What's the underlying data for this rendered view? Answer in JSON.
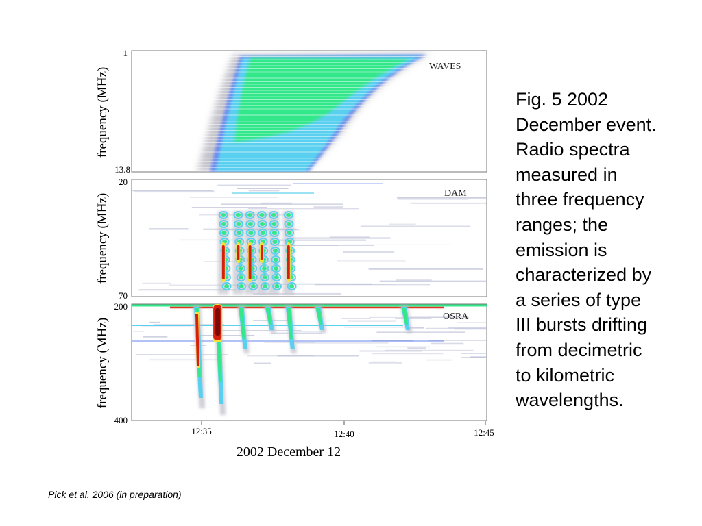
{
  "caption": {
    "lines": [
      "Fig. 5   2002",
      "December event.",
      "Radio spectra",
      "measured in",
      "three frequency",
      "ranges; the",
      "emission is",
      "characterized by",
      "a series of type",
      "III bursts drifting",
      "from decimetric",
      "to kilometric",
      "wavelengths."
    ]
  },
  "credit": "Pick et al. 2006 (in preparation)",
  "chart_data": {
    "type": "heatmap",
    "xlabel": "2002 December 12",
    "time_range": [
      "12:33",
      "12:45"
    ],
    "xticks": [
      "12:35",
      "12:40",
      "12:45"
    ],
    "colors": {
      "green": "#33e88a",
      "cyan": "#5ad0f0",
      "blue": "#6e8cf0",
      "gray": "#b9b9c6",
      "red": "#d4200c",
      "dark_red": "#7a0a04",
      "yellow": "#f2e23a"
    },
    "panels": [
      {
        "instrument": "WAVES",
        "ylabel": "frequency (MHz)",
        "ylim": [
          1,
          13.8
        ],
        "yticks": [
          "1",
          "13.8"
        ]
      },
      {
        "instrument": "DAM",
        "ylabel": "frequency (MHz)",
        "ylim": [
          20,
          70
        ],
        "yticks": [
          "20",
          "70"
        ],
        "bursts": [
          {
            "time": "12:36.1",
            "intensity": "high"
          },
          {
            "time": "12:36.6",
            "intensity": "medium"
          },
          {
            "time": "12:37.0",
            "intensity": "high"
          },
          {
            "time": "12:37.4",
            "intensity": "medium"
          },
          {
            "time": "12:37.8",
            "intensity": "low"
          },
          {
            "time": "12:38.3",
            "intensity": "high"
          }
        ]
      },
      {
        "instrument": "OSRA",
        "ylabel": "frequency (MHz)",
        "ylim": [
          200,
          400
        ],
        "yticks": [
          "200",
          "400"
        ],
        "bursts": [
          {
            "time": "12:35.2",
            "intensity": "high"
          },
          {
            "time": "12:35.9",
            "intensity": "very high"
          },
          {
            "time": "12:36.7",
            "intensity": "medium"
          },
          {
            "time": "12:37.6",
            "intensity": "low"
          },
          {
            "time": "12:38.3",
            "intensity": "medium"
          },
          {
            "time": "12:39.3",
            "intensity": "low"
          },
          {
            "time": "12:42.2",
            "intensity": "low"
          }
        ]
      }
    ]
  }
}
